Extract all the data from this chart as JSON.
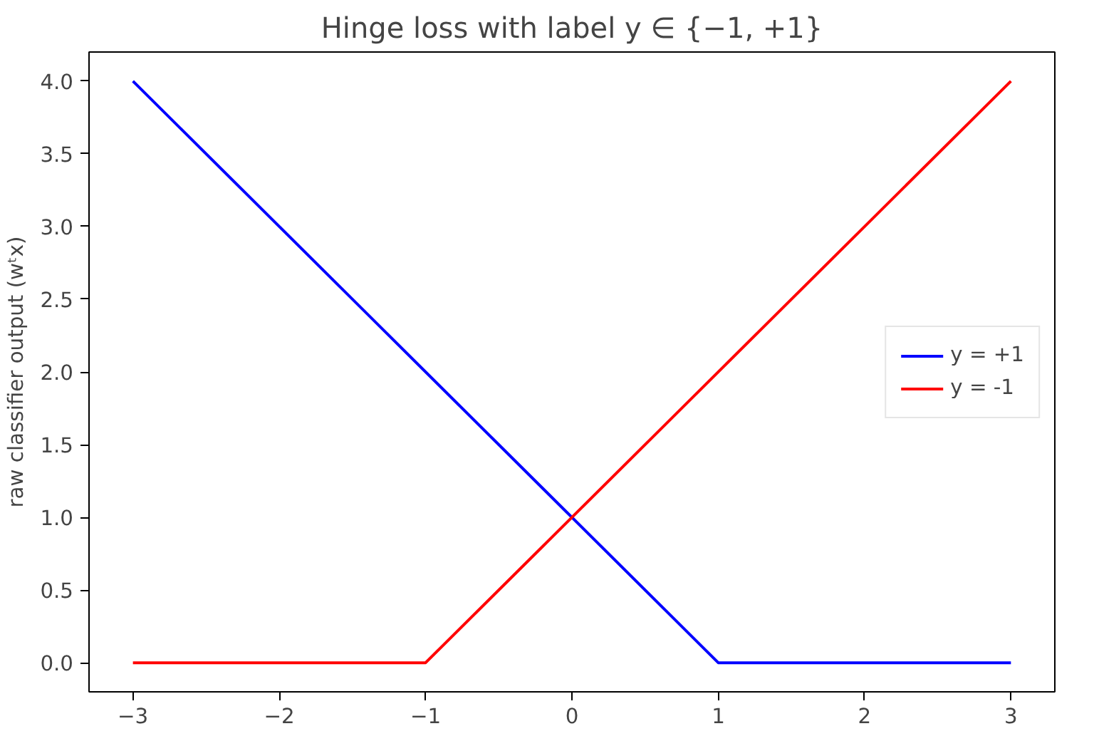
{
  "chart_data": {
    "type": "line",
    "title": "Hinge loss with label y ∈ {−1, +1}",
    "ylabel": "raw classifier output (wᵗx)",
    "series": [
      {
        "name": "y = +1",
        "color": "#0000ff",
        "x": [
          -3,
          1,
          3
        ],
        "values": [
          4,
          0,
          0
        ]
      },
      {
        "name": "y = -1",
        "color": "#ff0000",
        "x": [
          -3,
          -1,
          3
        ],
        "values": [
          0,
          0,
          4
        ]
      }
    ],
    "xlim": [
      -3.3,
      3.3
    ],
    "ylim": [
      -0.2,
      4.2
    ],
    "xticks": [
      {
        "value": -3,
        "label": "−3"
      },
      {
        "value": -2,
        "label": "−2"
      },
      {
        "value": -1,
        "label": "−1"
      },
      0,
      1,
      2,
      3
    ],
    "yticks": [
      {
        "value": 0,
        "label": "0.0"
      },
      {
        "value": 0.5,
        "label": "0.5"
      },
      {
        "value": 1,
        "label": "1.0"
      },
      {
        "value": 1.5,
        "label": "1.5"
      },
      {
        "value": 2,
        "label": "2.0"
      },
      {
        "value": 2.5,
        "label": "2.5"
      },
      {
        "value": 3,
        "label": "3.0"
      },
      {
        "value": 3.5,
        "label": "3.5"
      },
      {
        "value": 4,
        "label": "4.0"
      }
    ],
    "grid": false,
    "legend": "right",
    "line_style": "solid"
  }
}
